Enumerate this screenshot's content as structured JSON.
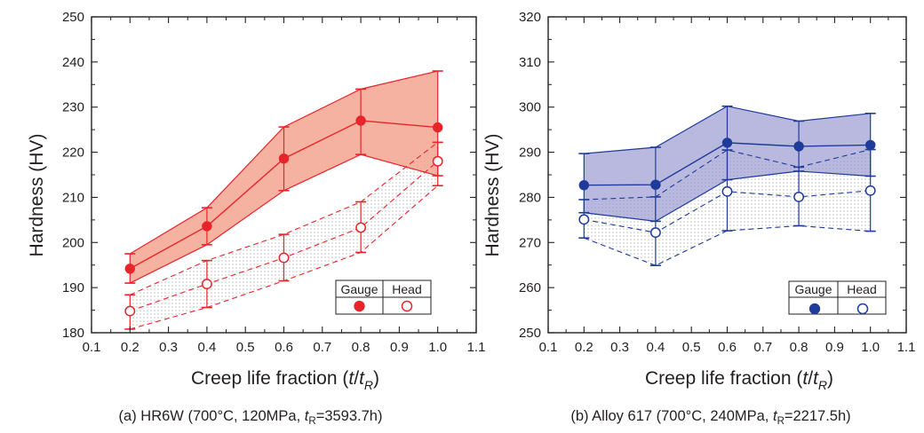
{
  "chart_data": [
    {
      "type": "line",
      "panel_caption": {
        "prefix": "(a) HR6W (700°C, 120MPa, ",
        "t": "t",
        "sub": "R",
        "suffix": "=3593.7h)"
      },
      "xlabel": {
        "text": "Creep life fraction (",
        "t": "t",
        "slash": "/",
        "t2": "t",
        "sub": "R",
        "close": ")"
      },
      "ylabel": "Hardness (HV)",
      "xlim": [
        0.1,
        1.1
      ],
      "ylim": [
        180,
        250
      ],
      "xticks": [
        "0.1",
        "0.2",
        "0.3",
        "0.4",
        "0.5",
        "0.6",
        "0.7",
        "0.8",
        "0.9",
        "1.0",
        "1.1"
      ],
      "yticks": [
        "180",
        "190",
        "200",
        "210",
        "220",
        "230",
        "240",
        "250"
      ],
      "colors": {
        "gauge": "#e8242b",
        "head": "#e8242b",
        "band_fill": "#f4a58f",
        "dot_fill": "#c7c7c7"
      },
      "legend": {
        "labels": [
          "Gauge",
          "Head"
        ],
        "position": "bottom-right"
      },
      "series": [
        {
          "name": "Gauge",
          "marker": "filled-circle",
          "x": [
            0.2,
            0.4,
            0.6,
            0.8,
            1.0
          ],
          "y": [
            194.2,
            203.6,
            218.6,
            227.0,
            225.5
          ],
          "upper": [
            197.5,
            207.7,
            225.6,
            234.0,
            238.0
          ],
          "lower": [
            191.0,
            199.5,
            211.5,
            219.5,
            214.8
          ],
          "band_style": "solid-fill"
        },
        {
          "name": "Head",
          "marker": "open-circle",
          "x": [
            0.2,
            0.4,
            0.6,
            0.8,
            1.0
          ],
          "y": [
            184.8,
            190.8,
            196.6,
            203.3,
            218.0
          ],
          "upper": [
            188.4,
            196.0,
            201.8,
            209.0,
            222.2
          ],
          "lower": [
            180.8,
            185.6,
            191.5,
            197.8,
            212.6
          ],
          "band_style": "dotted"
        }
      ]
    },
    {
      "type": "line",
      "panel_caption": {
        "prefix": "(b) Alloy 617 (700°C, 240MPa, ",
        "t": "t",
        "sub": "R",
        "suffix": "=2217.5h)"
      },
      "xlabel": {
        "text": "Creep life fraction (",
        "t": "t",
        "slash": "/",
        "t2": "t",
        "sub": "R",
        "close": ")"
      },
      "ylabel": "Hardness (HV)",
      "xlim": [
        0.1,
        1.1
      ],
      "ylim": [
        250,
        320
      ],
      "xticks": [
        "0.1",
        "0.2",
        "0.3",
        "0.4",
        "0.5",
        "0.6",
        "0.7",
        "0.8",
        "0.9",
        "1.0",
        "1.1"
      ],
      "yticks": [
        "250",
        "260",
        "270",
        "280",
        "290",
        "300",
        "310",
        "320"
      ],
      "colors": {
        "gauge": "#1f3b9a",
        "head": "#1f3b9a",
        "band_fill": "#9b9bd3",
        "dot_fill": "#c7c7c7"
      },
      "legend": {
        "labels": [
          "Gauge",
          "Head"
        ],
        "position": "bottom-right"
      },
      "series": [
        {
          "name": "Gauge",
          "marker": "filled-circle",
          "x": [
            0.2,
            0.4,
            0.6,
            0.8,
            1.0
          ],
          "y": [
            282.7,
            282.8,
            292.1,
            291.3,
            291.6
          ],
          "upper": [
            289.7,
            291.1,
            300.2,
            296.9,
            298.6
          ],
          "lower": [
            276.6,
            274.7,
            283.9,
            285.8,
            284.7
          ],
          "band_style": "solid-fill"
        },
        {
          "name": "Head",
          "marker": "open-circle",
          "x": [
            0.2,
            0.4,
            0.6,
            0.8,
            1.0
          ],
          "y": [
            275.1,
            272.2,
            281.3,
            280.1,
            281.5
          ],
          "upper": [
            279.5,
            280.1,
            290.5,
            286.7,
            290.6
          ],
          "lower": [
            271.0,
            264.9,
            272.6,
            273.7,
            272.5
          ],
          "band_style": "dotted"
        }
      ]
    }
  ]
}
